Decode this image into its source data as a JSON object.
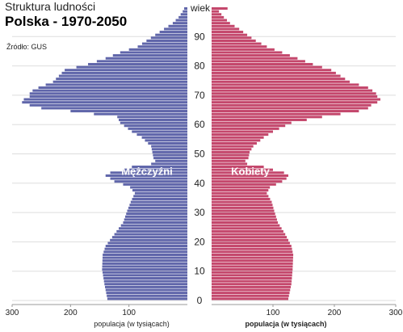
{
  "header": {
    "supertitle": "Struktura ludności",
    "title": "Polska - 1970-2050",
    "source": "Źródło: GUS"
  },
  "chart_data": {
    "type": "bar",
    "orientation": "horizontal-population-pyramid",
    "title": "Polska - 1970-2050",
    "age_axis_label": "wiek",
    "age_ticks": [
      0,
      10,
      20,
      30,
      40,
      50,
      60,
      70,
      80,
      90
    ],
    "x_ticks_left": [
      "300",
      "200",
      "100"
    ],
    "x_ticks_right": [
      "100",
      "200",
      "300"
    ],
    "xlabel_left": "populacja (w tysiącach)",
    "xlabel_right": "populacja (w tysiącach)",
    "xlim": [
      0,
      300
    ],
    "ylim": [
      0,
      100
    ],
    "colors": {
      "male": "#6066aa",
      "female": "#c4476c",
      "grid": "#dddddd"
    },
    "series": [
      {
        "name": "Mężczyźni",
        "side": "left",
        "ages": [
          0,
          5,
          10,
          15,
          18,
          22,
          26,
          30,
          33,
          36,
          38,
          39,
          40,
          41,
          42,
          43,
          44,
          45,
          46,
          47,
          48,
          50,
          52,
          55,
          57,
          60,
          62,
          64,
          65,
          66,
          67,
          68,
          69,
          70,
          71,
          72,
          74,
          76,
          78,
          80,
          82,
          84,
          86,
          88,
          90,
          92,
          94,
          96,
          98,
          100
        ],
        "values": [
          137,
          142,
          146,
          145,
          140,
          125,
          110,
          103,
          97,
          90,
          98,
          110,
          125,
          132,
          140,
          132,
          110,
          95,
          62,
          55,
          58,
          60,
          62,
          78,
          95,
          115,
          120,
          200,
          250,
          270,
          283,
          280,
          270,
          270,
          265,
          255,
          230,
          220,
          210,
          170,
          140,
          115,
          85,
          70,
          55,
          40,
          25,
          15,
          8,
          3
        ]
      },
      {
        "name": "Kobiety",
        "side": "right",
        "ages": [
          0,
          5,
          10,
          15,
          18,
          22,
          26,
          30,
          33,
          36,
          38,
          39,
          40,
          41,
          42,
          43,
          44,
          45,
          46,
          47,
          48,
          50,
          52,
          55,
          57,
          60,
          62,
          64,
          65,
          66,
          67,
          68,
          69,
          70,
          71,
          72,
          74,
          76,
          78,
          80,
          82,
          84,
          86,
          88,
          90,
          92,
          94,
          96,
          98,
          100
        ],
        "values": [
          125,
          130,
          132,
          133,
          130,
          120,
          108,
          102,
          98,
          90,
          95,
          105,
          115,
          122,
          125,
          118,
          100,
          85,
          58,
          55,
          60,
          62,
          68,
          85,
          100,
          130,
          180,
          240,
          255,
          260,
          270,
          275,
          270,
          268,
          262,
          255,
          225,
          210,
          195,
          165,
          140,
          115,
          90,
          72,
          58,
          45,
          30,
          20,
          12,
          40
        ]
      }
    ]
  }
}
